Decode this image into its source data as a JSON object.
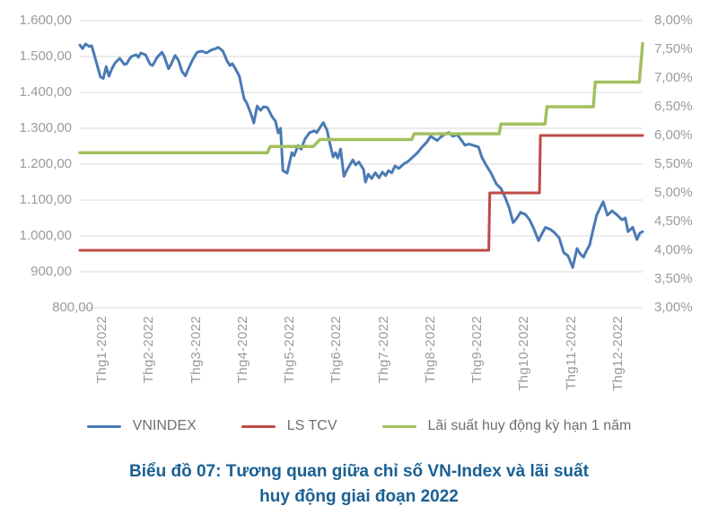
{
  "colors": {
    "vnindex_blue": "#4a7ab5",
    "ls_tcv_red": "#bd4b45",
    "deposit_green": "#a2c05f",
    "gridline": "#d9d9d9",
    "axis_text": "#9b9b9b",
    "legend_text": "#6f6f6f",
    "title_blue": "#1a6093",
    "background": "#ffffff"
  },
  "chart_data": {
    "type": "line",
    "title": "Biểu đồ 07: Tương quan giữa chỉ số VN-Index và lãi suất huy động giai đoạn 2022",
    "title_lines": [
      "Biểu đồ 07: Tương quan giữa chỉ số VN-Index và lãi suất",
      "huy động giai đoạn 2022"
    ],
    "grid": "horizontal-only",
    "legend_position": "bottom",
    "x_unit_months": 12,
    "x_labels": [
      "Thg1-2022",
      "Thg2-2022",
      "Thg3-2022",
      "Thg4-2022",
      "Thg5-2022",
      "Thg6-2022",
      "Thg7-2022",
      "Thg8-2022",
      "Thg9-2022",
      "Thg10-2022",
      "Thg11-2022",
      "Thg12-2022"
    ],
    "left_axis": {
      "min": 800,
      "max": 1600,
      "ticks": [
        "1.600,00",
        "1.500,00",
        "1.400,00",
        "1.300,00",
        "1.200,00",
        "1.100,00",
        "1.000,00",
        "900,00",
        "800,00"
      ]
    },
    "right_axis": {
      "min": 3,
      "max": 8,
      "ticks": [
        "8,00%",
        "7,50%",
        "7,00%",
        "6,50%",
        "6,00%",
        "5,50%",
        "5,00%",
        "4,50%",
        "4,00%",
        "3,50%",
        "3,00%"
      ]
    },
    "legend": [
      {
        "label": "VNINDEX",
        "color": "#4a7ab5"
      },
      {
        "label": "LS TCV",
        "color": "#bd4b45"
      },
      {
        "label": "Lãi suất huy động kỳ hạn 1 năm",
        "color": "#a2c05f"
      }
    ],
    "series": [
      {
        "id": "vnindex",
        "name": "VNINDEX",
        "axis": "left",
        "color": "#4a7ab5",
        "width": 3,
        "points": [
          [
            0,
            1532
          ],
          [
            0.06,
            1522
          ],
          [
            0.12,
            1535
          ],
          [
            0.2,
            1528
          ],
          [
            0.25,
            1530
          ],
          [
            0.3,
            1508
          ],
          [
            0.38,
            1470
          ],
          [
            0.44,
            1443
          ],
          [
            0.5,
            1439
          ],
          [
            0.56,
            1472
          ],
          [
            0.62,
            1445
          ],
          [
            0.68,
            1465
          ],
          [
            0.75,
            1482
          ],
          [
            0.85,
            1495
          ],
          [
            0.95,
            1478
          ],
          [
            1.0,
            1480
          ],
          [
            1.05,
            1492
          ],
          [
            1.1,
            1500
          ],
          [
            1.2,
            1505
          ],
          [
            1.25,
            1498
          ],
          [
            1.3,
            1510
          ],
          [
            1.4,
            1505
          ],
          [
            1.5,
            1478
          ],
          [
            1.55,
            1475
          ],
          [
            1.65,
            1498
          ],
          [
            1.7,
            1505
          ],
          [
            1.75,
            1512
          ],
          [
            1.8,
            1500
          ],
          [
            1.89,
            1466
          ],
          [
            1.95,
            1480
          ],
          [
            2.03,
            1503
          ],
          [
            2.1,
            1490
          ],
          [
            2.18,
            1458
          ],
          [
            2.25,
            1446
          ],
          [
            2.3,
            1462
          ],
          [
            2.4,
            1490
          ],
          [
            2.5,
            1512
          ],
          [
            2.6,
            1515
          ],
          [
            2.7,
            1510
          ],
          [
            2.8,
            1518
          ],
          [
            2.9,
            1522
          ],
          [
            2.95,
            1526
          ],
          [
            3.05,
            1515
          ],
          [
            3.14,
            1487
          ],
          [
            3.2,
            1475
          ],
          [
            3.25,
            1480
          ],
          [
            3.3,
            1470
          ],
          [
            3.4,
            1445
          ],
          [
            3.5,
            1383
          ],
          [
            3.56,
            1370
          ],
          [
            3.65,
            1340
          ],
          [
            3.71,
            1315
          ],
          [
            3.78,
            1362
          ],
          [
            3.85,
            1350
          ],
          [
            3.92,
            1360
          ],
          [
            4.0,
            1358
          ],
          [
            4.1,
            1332
          ],
          [
            4.17,
            1320
          ],
          [
            4.23,
            1287
          ],
          [
            4.28,
            1300
          ],
          [
            4.33,
            1182
          ],
          [
            4.42,
            1175
          ],
          [
            4.52,
            1232
          ],
          [
            4.57,
            1224
          ],
          [
            4.65,
            1252
          ],
          [
            4.72,
            1242
          ],
          [
            4.8,
            1270
          ],
          [
            4.9,
            1288
          ],
          [
            5.0,
            1293
          ],
          [
            5.05,
            1288
          ],
          [
            5.12,
            1302
          ],
          [
            5.19,
            1316
          ],
          [
            5.27,
            1295
          ],
          [
            5.33,
            1258
          ],
          [
            5.4,
            1220
          ],
          [
            5.45,
            1232
          ],
          [
            5.5,
            1217
          ],
          [
            5.56,
            1242
          ],
          [
            5.63,
            1166
          ],
          [
            5.7,
            1185
          ],
          [
            5.82,
            1212
          ],
          [
            5.88,
            1198
          ],
          [
            5.95,
            1206
          ],
          [
            6.05,
            1185
          ],
          [
            6.09,
            1150
          ],
          [
            6.15,
            1172
          ],
          [
            6.22,
            1160
          ],
          [
            6.3,
            1176
          ],
          [
            6.38,
            1162
          ],
          [
            6.45,
            1178
          ],
          [
            6.52,
            1168
          ],
          [
            6.58,
            1182
          ],
          [
            6.65,
            1176
          ],
          [
            6.72,
            1195
          ],
          [
            6.8,
            1188
          ],
          [
            6.9,
            1200
          ],
          [
            7.0,
            1208
          ],
          [
            7.1,
            1220
          ],
          [
            7.2,
            1232
          ],
          [
            7.3,
            1248
          ],
          [
            7.4,
            1262
          ],
          [
            7.48,
            1278
          ],
          [
            7.55,
            1272
          ],
          [
            7.62,
            1266
          ],
          [
            7.7,
            1276
          ],
          [
            7.8,
            1285
          ],
          [
            7.87,
            1288
          ],
          [
            7.95,
            1278
          ],
          [
            8.05,
            1282
          ],
          [
            8.12,
            1270
          ],
          [
            8.21,
            1253
          ],
          [
            8.3,
            1256
          ],
          [
            8.4,
            1252
          ],
          [
            8.5,
            1248
          ],
          [
            8.57,
            1220
          ],
          [
            8.65,
            1200
          ],
          [
            8.77,
            1175
          ],
          [
            8.88,
            1145
          ],
          [
            8.98,
            1132
          ],
          [
            9.07,
            1107
          ],
          [
            9.15,
            1080
          ],
          [
            9.24,
            1037
          ],
          [
            9.32,
            1050
          ],
          [
            9.4,
            1066
          ],
          [
            9.5,
            1060
          ],
          [
            9.59,
            1045
          ],
          [
            9.68,
            1020
          ],
          [
            9.78,
            987
          ],
          [
            9.86,
            1008
          ],
          [
            9.93,
            1024
          ],
          [
            10.03,
            1018
          ],
          [
            10.1,
            1012
          ],
          [
            10.22,
            995
          ],
          [
            10.32,
            953
          ],
          [
            10.41,
            945
          ],
          [
            10.51,
            912
          ],
          [
            10.6,
            965
          ],
          [
            10.67,
            950
          ],
          [
            10.74,
            941
          ],
          [
            10.8,
            958
          ],
          [
            10.87,
            975
          ],
          [
            10.95,
            1020
          ],
          [
            11.02,
            1058
          ],
          [
            11.1,
            1080
          ],
          [
            11.16,
            1095
          ],
          [
            11.25,
            1058
          ],
          [
            11.35,
            1070
          ],
          [
            11.46,
            1058
          ],
          [
            11.56,
            1045
          ],
          [
            11.63,
            1050
          ],
          [
            11.69,
            1012
          ],
          [
            11.79,
            1024
          ],
          [
            11.88,
            990
          ],
          [
            11.94,
            1008
          ],
          [
            12,
            1012
          ]
        ]
      },
      {
        "id": "ls-tcv",
        "name": "LS TCV",
        "axis": "right",
        "color": "#bd4b45",
        "width": 3,
        "points": [
          [
            0,
            4.0
          ],
          [
            8.72,
            4.0
          ],
          [
            8.74,
            5.0
          ],
          [
            9.8,
            5.0
          ],
          [
            9.82,
            6.0
          ],
          [
            12,
            6.0
          ]
        ]
      },
      {
        "id": "deposit-rate",
        "name": "Lãi suất huy động kỳ hạn 1 năm",
        "axis": "right",
        "color": "#a2c05f",
        "width": 3.5,
        "points": [
          [
            0,
            5.7
          ],
          [
            4.0,
            5.7
          ],
          [
            4.06,
            5.81
          ],
          [
            4.98,
            5.81
          ],
          [
            5.12,
            5.93
          ],
          [
            7.08,
            5.93
          ],
          [
            7.13,
            6.03
          ],
          [
            8.94,
            6.03
          ],
          [
            8.98,
            6.2
          ],
          [
            9.92,
            6.2
          ],
          [
            9.96,
            6.5
          ],
          [
            10.95,
            6.5
          ],
          [
            10.99,
            6.93
          ],
          [
            11.93,
            6.93
          ],
          [
            12,
            7.6
          ]
        ]
      }
    ]
  }
}
